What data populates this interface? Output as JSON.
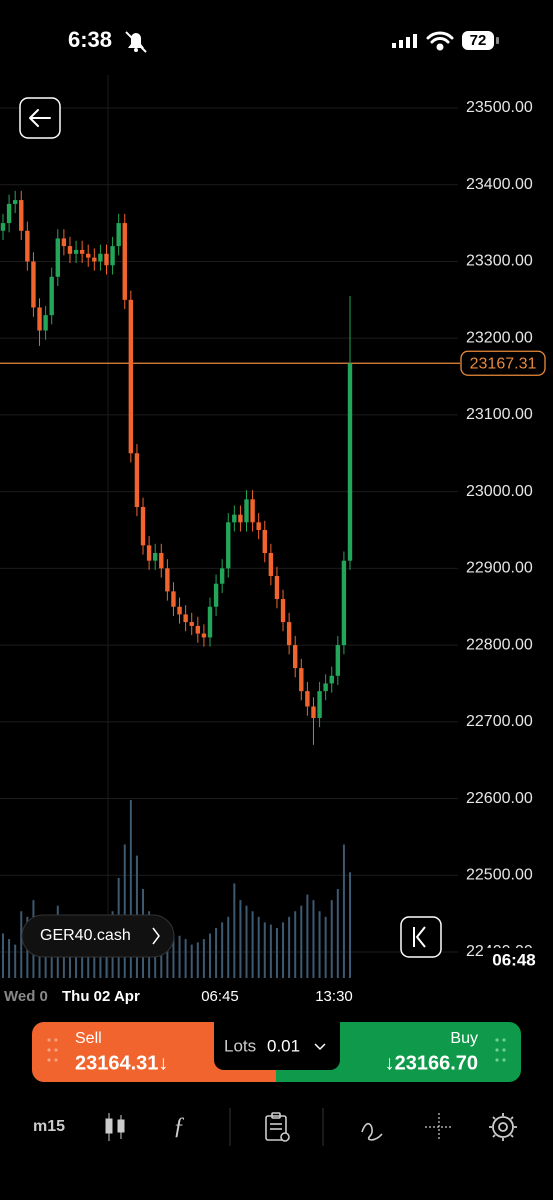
{
  "status_bar": {
    "time": "6:38",
    "battery": "72"
  },
  "chart_data": {
    "type": "candlestick",
    "symbol": "GER40.cash",
    "ylim": [
      22400,
      23500
    ],
    "yticks": [
      {
        "value": 23500,
        "label": "23500.00"
      },
      {
        "value": 23400,
        "label": "23400.00"
      },
      {
        "value": 23300,
        "label": "23300.00"
      },
      {
        "value": 23200,
        "label": "23200.00"
      },
      {
        "value": 23100,
        "label": "23100.00"
      },
      {
        "value": 23000,
        "label": "23000.00"
      },
      {
        "value": 22900,
        "label": "22900.00"
      },
      {
        "value": 22800,
        "label": "22800.00"
      },
      {
        "value": 22700,
        "label": "22700.00"
      },
      {
        "value": 22600,
        "label": "22600.00"
      },
      {
        "value": 22500,
        "label": "22500.00"
      },
      {
        "value": 22400,
        "label": "22400.00"
      }
    ],
    "current_price": 23167.31,
    "x_labels": [
      "Wed 0",
      "Thu 02 Apr",
      "06:45",
      "13:30"
    ],
    "cursor_time": "06:48",
    "up_color": "#23a55a",
    "down_color": "#f2642e",
    "price_line_color": "#e98a3c",
    "volume_color": "#3d5a73",
    "open": [
      23340,
      23350,
      23375,
      23380,
      23340,
      23300,
      23240,
      23210,
      23230,
      23280,
      23330,
      23320,
      23310,
      23315,
      23310,
      23305,
      23300,
      23310,
      23295,
      23320,
      23350,
      23250,
      23050,
      22980,
      22930,
      22910,
      22920,
      22900,
      22870,
      22850,
      22840,
      22830,
      22825,
      22815,
      22810,
      22850,
      22880,
      22900,
      22960,
      22970,
      22960,
      22990,
      22960,
      22950,
      22920,
      22890,
      22860,
      22830,
      22800,
      22770,
      22740,
      22720,
      22705,
      22740,
      22750,
      22760,
      22800,
      22910
    ],
    "high": [
      23362,
      23387,
      23392,
      23392,
      23352,
      23312,
      23252,
      23242,
      23292,
      23342,
      23342,
      23332,
      23327,
      23327,
      23322,
      23317,
      23322,
      23322,
      23332,
      23362,
      23362,
      23262,
      23062,
      22992,
      22942,
      22932,
      22932,
      22912,
      22882,
      22862,
      22852,
      22842,
      22837,
      22827,
      22862,
      22892,
      22912,
      22972,
      22982,
      22982,
      23002,
      23002,
      22972,
      22962,
      22932,
      22902,
      22872,
      22842,
      22812,
      22782,
      22752,
      22732,
      22752,
      22762,
      22772,
      22812,
      22922,
      23255
    ],
    "low": [
      23328,
      23338,
      23363,
      23328,
      23288,
      23228,
      23190,
      23198,
      23218,
      23268,
      23308,
      23298,
      23298,
      23298,
      23293,
      23288,
      23288,
      23283,
      23283,
      23308,
      23238,
      23038,
      22968,
      22918,
      22898,
      22898,
      22888,
      22858,
      22838,
      22828,
      22818,
      22813,
      22803,
      22798,
      22798,
      22838,
      22868,
      22888,
      22948,
      22948,
      22948,
      22948,
      22938,
      22908,
      22878,
      22848,
      22818,
      22788,
      22758,
      22728,
      22708,
      22670,
      22693,
      22728,
      22738,
      22748,
      22788,
      22898
    ],
    "close": [
      23350,
      23375,
      23380,
      23340,
      23300,
      23240,
      23210,
      23230,
      23280,
      23330,
      23320,
      23310,
      23315,
      23310,
      23305,
      23300,
      23310,
      23295,
      23320,
      23350,
      23250,
      23050,
      22980,
      22930,
      22910,
      22920,
      22900,
      22870,
      22850,
      22840,
      22830,
      22825,
      22815,
      22810,
      22850,
      22880,
      22900,
      22960,
      22970,
      22960,
      22990,
      22960,
      22950,
      22920,
      22890,
      22860,
      22830,
      22800,
      22770,
      22740,
      22720,
      22705,
      22740,
      22750,
      22760,
      22800,
      22910,
      23167.31
    ],
    "volume": [
      40,
      35,
      30,
      60,
      55,
      70,
      45,
      40,
      50,
      65,
      35,
      30,
      28,
      32,
      30,
      38,
      40,
      45,
      60,
      90,
      120,
      160,
      110,
      80,
      60,
      55,
      50,
      45,
      40,
      38,
      35,
      30,
      32,
      35,
      40,
      45,
      50,
      55,
      85,
      70,
      65,
      60,
      55,
      50,
      48,
      45,
      50,
      55,
      60,
      65,
      75,
      70,
      60,
      55,
      70,
      80,
      120,
      95
    ]
  },
  "trade_panel": {
    "sell_label": "Sell",
    "sell_price": "23164.31↓",
    "lots_label": "Lots",
    "lots_value": "0.01",
    "buy_label": "Buy",
    "buy_price": "↓23166.70"
  },
  "toolbar": {
    "timeframe": "m15"
  }
}
